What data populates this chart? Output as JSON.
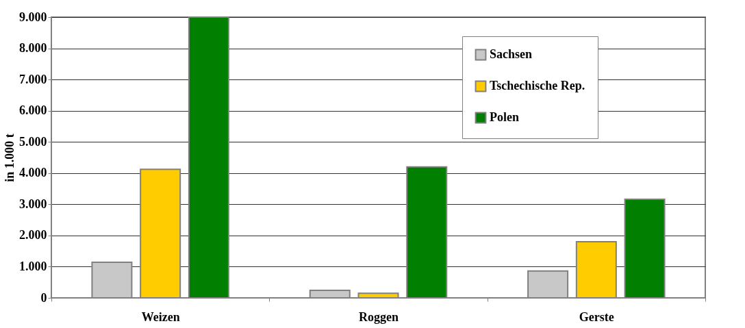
{
  "chart_data": {
    "type": "bar",
    "ylabel": "in 1.000 t",
    "categories": [
      "Weizen",
      "Roggen",
      "Gerste"
    ],
    "series": [
      {
        "name": "Sachsen",
        "color": "#c8c8c8",
        "values": [
          1140,
          240,
          860
        ]
      },
      {
        "name": "Tschechische Rep.",
        "color": "#ffcc00",
        "values": [
          4120,
          150,
          1800
        ]
      },
      {
        "name": "Polen",
        "color": "#007f00",
        "values": [
          9000,
          4200,
          3160
        ]
      }
    ],
    "ylim": [
      0,
      9000
    ],
    "yticks": [
      {
        "value": 0,
        "label": "0"
      },
      {
        "value": 1000,
        "label": "1.000"
      },
      {
        "value": 2000,
        "label": "2.000"
      },
      {
        "value": 3000,
        "label": "3.000"
      },
      {
        "value": 4000,
        "label": "4.000"
      },
      {
        "value": 5000,
        "label": "5.000"
      },
      {
        "value": 6000,
        "label": "6.000"
      },
      {
        "value": 7000,
        "label": "7.000"
      },
      {
        "value": 8000,
        "label": "8.000"
      },
      {
        "value": 9000,
        "label": "9.000"
      }
    ],
    "grid": "y",
    "legend": "top right"
  }
}
